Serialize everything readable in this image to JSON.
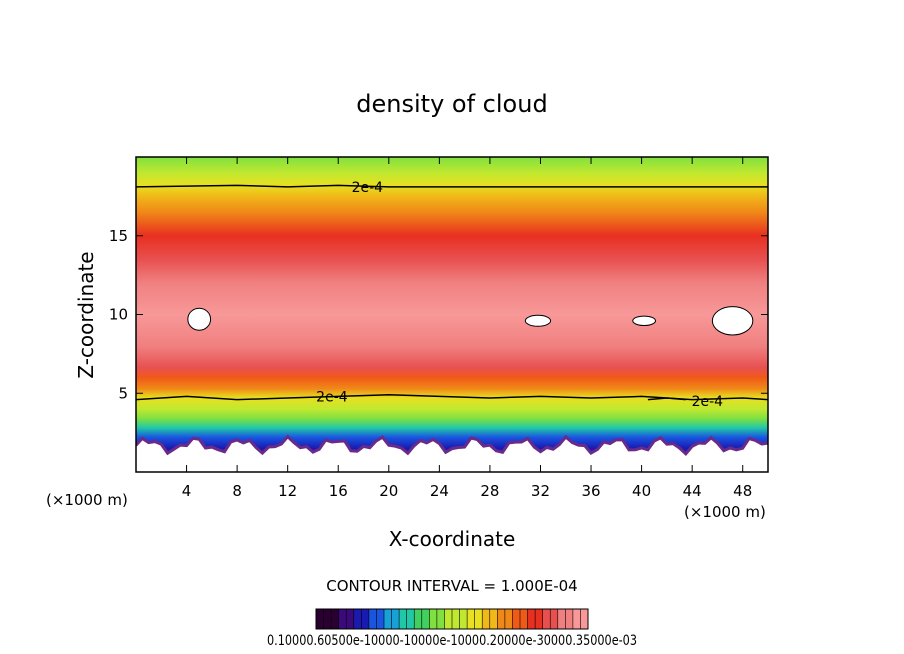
{
  "chart_data": {
    "type": "heatmap",
    "title": "density of cloud",
    "xlabel": "X-coordinate",
    "ylabel": "Z-coordinate",
    "x_unit": "(×1000 m)",
    "y_unit": "(×1000 m)",
    "xlim": [
      0,
      50
    ],
    "ylim": [
      0,
      20
    ],
    "x_ticks": [
      4,
      8,
      12,
      16,
      20,
      24,
      28,
      32,
      36,
      40,
      44,
      48
    ],
    "y_ticks": [
      5,
      10,
      15
    ],
    "z_profile": [
      {
        "z": 1.5,
        "v": 5e-05
      },
      {
        "z": 2.2,
        "v": 8e-05
      },
      {
        "z": 2.8,
        "v": 0.00012
      },
      {
        "z": 3.4,
        "v": 0.00016
      },
      {
        "z": 4.0,
        "v": 0.00019
      },
      {
        "z": 4.7,
        "v": 0.00021
      },
      {
        "z": 5.3,
        "v": 0.00024
      },
      {
        "z": 6.0,
        "v": 0.00028
      },
      {
        "z": 6.6,
        "v": 0.00031
      },
      {
        "z": 8.0,
        "v": 0.00033
      },
      {
        "z": 10.0,
        "v": 0.00035
      },
      {
        "z": 12.0,
        "v": 0.00034
      },
      {
        "z": 13.5,
        "v": 0.00031
      },
      {
        "z": 15.0,
        "v": 0.000295
      },
      {
        "z": 16.5,
        "v": 0.00026
      },
      {
        "z": 17.5,
        "v": 0.00023
      },
      {
        "z": 18.2,
        "v": 0.0002
      },
      {
        "z": 19.0,
        "v": 0.00018
      },
      {
        "z": 20.0,
        "v": 0.00017
      }
    ],
    "contour_label": "2e-4",
    "contour_level": 0.0002,
    "contour_lines": [
      {
        "points": [
          [
            0,
            18.1
          ],
          [
            8,
            18.2
          ],
          [
            12,
            18.1
          ],
          [
            16,
            18.2
          ],
          [
            20,
            18.1
          ],
          [
            28,
            18.1
          ],
          [
            36,
            18.1
          ],
          [
            44,
            18.1
          ],
          [
            50,
            18.1
          ]
        ],
        "label_at": [
          18.3,
          18.1
        ]
      },
      {
        "points": [
          [
            0,
            4.6
          ],
          [
            4,
            4.8
          ],
          [
            8,
            4.6
          ],
          [
            12,
            4.7
          ],
          [
            16,
            4.8
          ],
          [
            20,
            4.9
          ],
          [
            24,
            4.8
          ],
          [
            28,
            4.7
          ],
          [
            32,
            4.8
          ],
          [
            36,
            4.7
          ],
          [
            40,
            4.8
          ],
          [
            44,
            4.6
          ],
          [
            48,
            4.7
          ],
          [
            50,
            4.6
          ]
        ],
        "label_at": [
          15.5,
          4.8
        ]
      },
      {
        "points": [
          [
            40.5,
            4.6
          ],
          [
            42,
            4.7
          ],
          [
            43.5,
            4.6
          ]
        ],
        "label_at": [
          45.2,
          4.5
        ]
      }
    ],
    "holes": [
      {
        "x": 5.0,
        "z": 9.7,
        "rx": 0.9,
        "rz": 0.7
      },
      {
        "x": 31.8,
        "z": 9.6,
        "rx": 1.0,
        "rz": 0.35
      },
      {
        "x": 47.2,
        "z": 9.6,
        "rx": 1.6,
        "rz": 0.9
      },
      {
        "x": 40.2,
        "z": 9.6,
        "rx": 0.9,
        "rz": 0.3
      }
    ],
    "contour_interval_label": "CONTOUR INTERVAL = 1.000E-04",
    "colorbar": {
      "tick_labels": [
        "0.10000",
        "0.60500e-1000",
        "0.10000",
        "0.10000",
        "0.20000",
        "0.30000",
        "0.35000e-03"
      ],
      "label_text": "0.10000.60500e-10000-10000e-10000.20000e-30000.35000e-03",
      "colors": [
        "#2a0030",
        "#3a0a7a",
        "#1a1ab0",
        "#1a55e0",
        "#18a0d8",
        "#20c8a8",
        "#40d060",
        "#80e040",
        "#c0e830",
        "#e8e020",
        "#f0b818",
        "#f08818",
        "#f05a18",
        "#e83020",
        "#e85050",
        "#f08080",
        "#f89898"
      ]
    },
    "grid": false
  }
}
